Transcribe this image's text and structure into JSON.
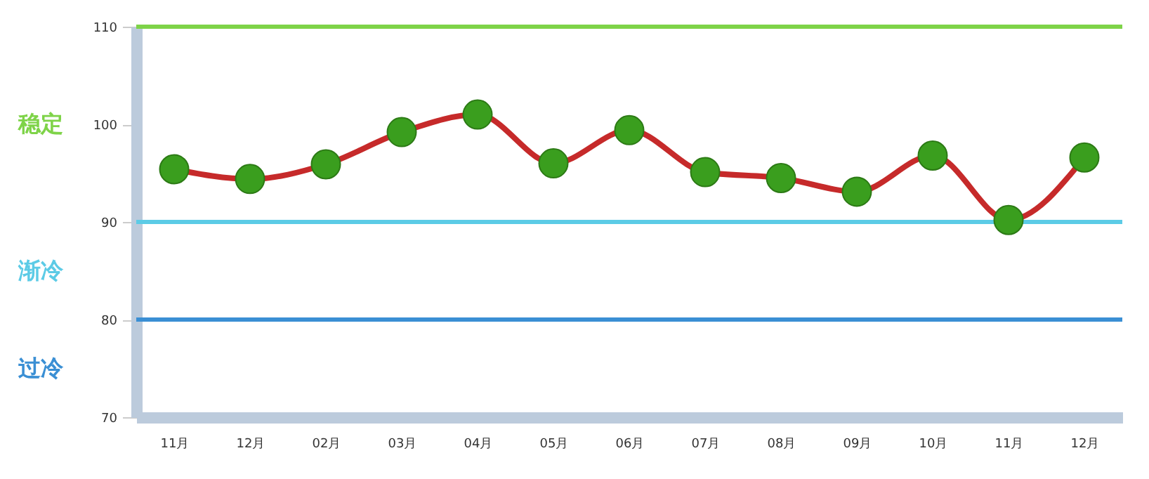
{
  "chart_data": {
    "type": "line",
    "categories": [
      "11月",
      "12月",
      "02月",
      "03月",
      "04月",
      "05月",
      "06月",
      "07月",
      "08月",
      "09月",
      "10月",
      "11月",
      "12月"
    ],
    "series": [
      {
        "color": "#c62a2a",
        "colors": [
          "#3a9e1e",
          "#3a9e1e",
          "#3a9e1e",
          "#3a9e1e",
          "#3a9e1e",
          "#3a9e1e",
          "#3a9e1e",
          "#3a9e1e",
          "#3a9e1e",
          "#3a9e1e",
          "#3a9e1e",
          "#3a9e1e",
          "#3a9e1e"
        ],
        "values": [
          95.4,
          94.4,
          95.9,
          99.2,
          101.0,
          96.0,
          99.4,
          95.1,
          94.5,
          93.1,
          96.8,
          90.2,
          96.6
        ]
      }
    ],
    "marker": "circle",
    "ylim": [
      70,
      110
    ],
    "yticks": [
      70,
      80,
      90,
      100,
      110
    ],
    "ref_lines": [
      {
        "axis": "y",
        "value": 110,
        "color": "#7ed348"
      },
      {
        "axis": "y",
        "value": 90,
        "color": "#5ccbe6"
      },
      {
        "axis": "y",
        "value": 80,
        "color": "#3a8fd4"
      }
    ],
    "annotations": [
      "稳定",
      "渐冷",
      "过冷"
    ]
  }
}
